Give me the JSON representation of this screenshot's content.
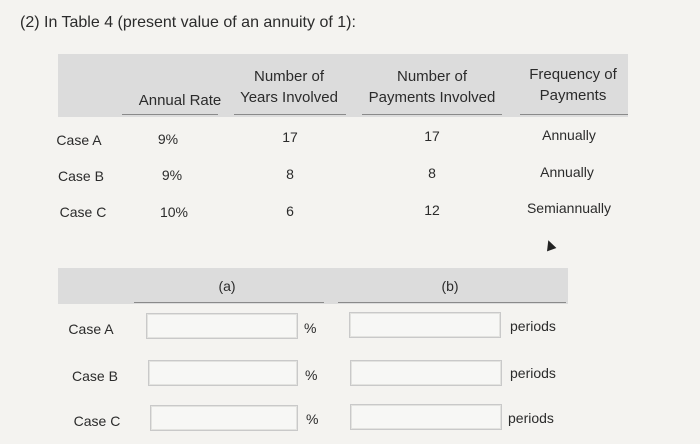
{
  "question": {
    "title": "(2) In Table 4 (present value of an annuity of 1):"
  },
  "top_table": {
    "headers": {
      "annual_rate": "Annual Rate",
      "years_line1": "Number of",
      "years_line2": "Years Involved",
      "payments_line1": "Number of",
      "payments_line2": "Payments Involved",
      "frequency_line1": "Frequency of",
      "frequency_line2": "Payments"
    },
    "rows": [
      {
        "case": "Case A",
        "rate": "9%",
        "years": "17",
        "payments": "17",
        "frequency": "Annually"
      },
      {
        "case": "Case B",
        "rate": "9%",
        "years": "8",
        "payments": "8",
        "frequency": "Annually"
      },
      {
        "case": "Case C",
        "rate": "10%",
        "years": "6",
        "payments": "12",
        "frequency": "Semiannually"
      }
    ]
  },
  "bottom_table": {
    "headers": {
      "a": "(a)",
      "b": "(b)"
    },
    "rows": [
      {
        "case": "Case A",
        "a_value": "",
        "a_unit": "%",
        "b_value": "",
        "b_unit": "periods"
      },
      {
        "case": "Case B",
        "a_value": "",
        "a_unit": "%",
        "b_value": "",
        "b_unit": "periods"
      },
      {
        "case": "Case C",
        "a_value": "",
        "a_unit": "%",
        "b_value": "",
        "b_unit": "periods"
      }
    ]
  }
}
